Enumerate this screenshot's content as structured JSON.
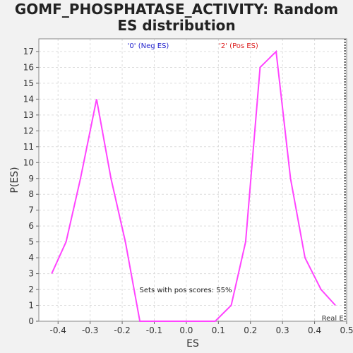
{
  "chart_data": {
    "type": "line",
    "title": "GOMF_PHOSPHATASE_ACTIVITY: Random ES distribution",
    "title_lines": [
      "GOMF_PHOSPHATASE_ACTIVITY: Random",
      "ES distribution"
    ],
    "xlabel": "ES",
    "ylabel": "P(ES)",
    "xlim": [
      -0.46,
      0.5
    ],
    "ylim": [
      0,
      17.8
    ],
    "xticks": [
      "-0.4",
      "-0.3",
      "-0.2",
      "-0.1",
      "0.0",
      "0.1",
      "0.2",
      "0.3",
      "0.4",
      "0.5"
    ],
    "yticks": [
      "0",
      "1",
      "2",
      "3",
      "4",
      "5",
      "6",
      "7",
      "8",
      "9",
      "10",
      "11",
      "12",
      "13",
      "14",
      "15",
      "16",
      "17"
    ],
    "grid": true,
    "series": [
      {
        "color": "#ff44ff",
        "x": [
          -0.42,
          -0.375,
          -0.33,
          -0.28,
          -0.235,
          -0.19,
          -0.145,
          -0.1,
          -0.055,
          -0.01,
          0.04,
          0.09,
          0.14,
          0.185,
          0.23,
          0.28,
          0.325,
          0.37,
          0.42,
          0.465
        ],
        "y": [
          3,
          5,
          9,
          14,
          9,
          5,
          0,
          0,
          0,
          0,
          0,
          0,
          1,
          5,
          16,
          17,
          9,
          4,
          2,
          1
        ]
      }
    ],
    "annotations": {
      "neg_label": "'0' (Neg ES)",
      "neg_color": "#2222cc",
      "pos_label": "'2' (Pos ES)",
      "pos_color": "#dd2222",
      "sets_text": "Sets with pos scores: 55%",
      "real_label": "Real E",
      "real_x": 0.495
    }
  }
}
